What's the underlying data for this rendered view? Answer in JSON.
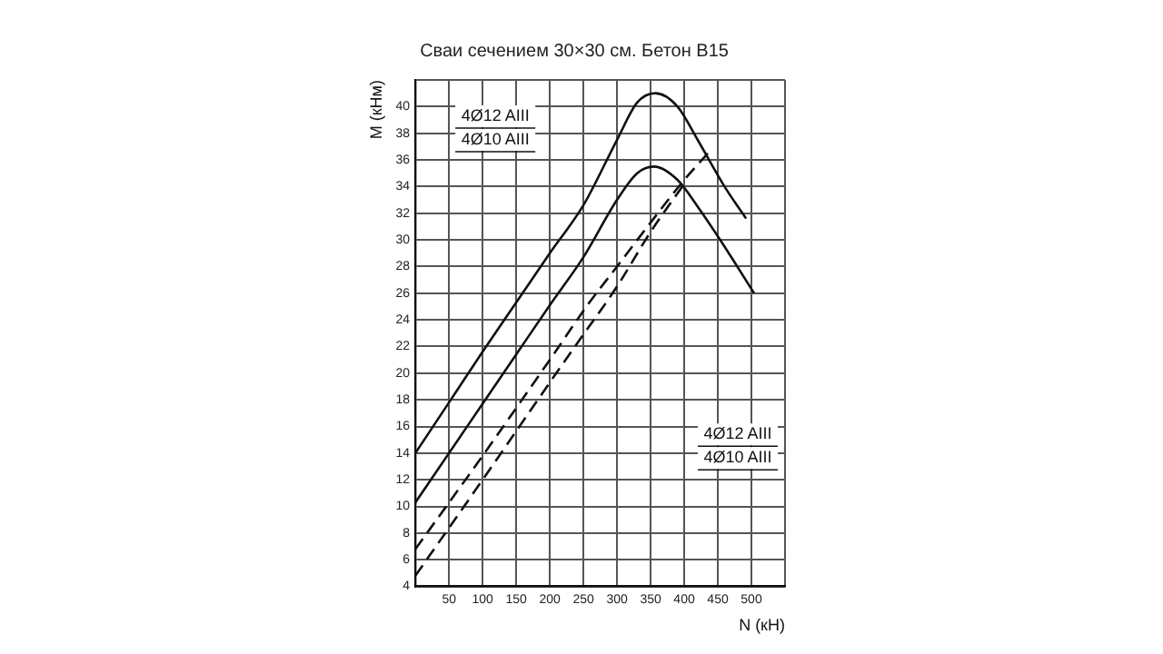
{
  "chart_data": {
    "type": "line",
    "title": "Сваи сечением 30×30 см. Бетон В15",
    "xlabel": "N (кН)",
    "ylabel": "M (кНм)",
    "xlim": [
      0,
      550
    ],
    "ylim": [
      4,
      42
    ],
    "xticks": [
      50,
      100,
      150,
      200,
      250,
      300,
      350,
      400,
      450,
      500,
      {
        "value": 550,
        "label": null
      }
    ],
    "yticks": [
      4,
      6,
      8,
      10,
      12,
      14,
      16,
      18,
      20,
      22,
      24,
      26,
      28,
      30,
      32,
      34,
      36,
      38,
      40,
      {
        "value": 42,
        "label": null
      }
    ],
    "grid": true,
    "legend": false,
    "marker": "none",
    "series": [
      {
        "color": "#111111",
        "line_style": "solid",
        "x": [
          0,
          50,
          100,
          150,
          200,
          250,
          300,
          330,
          357,
          390,
          420,
          460,
          492
        ],
        "values": [
          14,
          17.8,
          21.6,
          25.3,
          29,
          32.6,
          37.5,
          40.3,
          41,
          40,
          37.5,
          34,
          31.6
        ]
      },
      {
        "color": "#111111",
        "line_style": "solid",
        "x": [
          0,
          50,
          100,
          150,
          200,
          250,
          300,
          330,
          355,
          390,
          420,
          460,
          504
        ],
        "values": [
          10.3,
          14,
          17.7,
          21.4,
          25.1,
          28.7,
          33,
          35,
          35.5,
          34.5,
          32.5,
          29.5,
          26
        ]
      },
      {
        "color": "#111111",
        "line_style": "dashed",
        "x": [
          0,
          100,
          200,
          256,
          300,
          350,
          400,
          437
        ],
        "values": [
          6.8,
          13.8,
          21,
          25.1,
          28,
          31.3,
          34.5,
          36.6
        ]
      },
      {
        "color": "#111111",
        "line_style": "dashed",
        "x": [
          0,
          100,
          200,
          250,
          300,
          350,
          400
        ],
        "values": [
          4.8,
          12,
          19.3,
          22.9,
          26.5,
          30.6,
          34.2
        ]
      }
    ],
    "annotations": [
      "4Ø12 AIII",
      "4Ø10 AIII",
      "4Ø12 AIII",
      "4Ø10 AIII"
    ]
  }
}
